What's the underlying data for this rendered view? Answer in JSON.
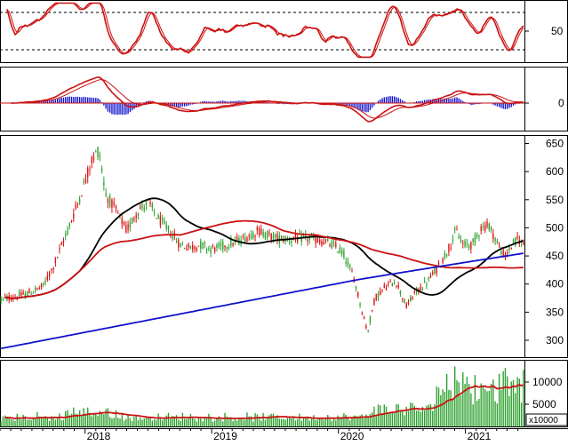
{
  "colors": {
    "background": "#ffffff",
    "frame": "#000000",
    "grid": "#000000",
    "candle_up": "#2ca02c",
    "candle_down": "#dd1111",
    "ma_fast": "#000000",
    "ma_mid": "#cc1111",
    "ma_slow": "#1111cc",
    "rsi_line": "#cc1111",
    "rsi_signal": "#cc1111",
    "macd_line": "#cc1111",
    "macd_signal": "#cc1111",
    "macd_hist_pos": "#1111cc",
    "macd_hist_neg": "#1111cc",
    "volume_bar": "#2ca02c",
    "volume_ma": "#cc1111"
  },
  "chart_data": [
    {
      "type": "line",
      "panel": "rsi",
      "y_ticks": [
        50
      ],
      "ylim": [
        0,
        100
      ],
      "reference_lines": [
        80,
        20
      ],
      "grid": false
    },
    {
      "type": "bar",
      "panel": "macd",
      "y_ticks": [
        0
      ],
      "grid": false
    },
    {
      "type": "candlestick",
      "panel": "price",
      "y_ticks": [
        300,
        350,
        400,
        450,
        500,
        550,
        600,
        650
      ],
      "ylim": [
        270,
        665
      ],
      "grid": false,
      "moving_averages": [
        "ma_fast",
        "ma_mid",
        "ma_slow"
      ]
    },
    {
      "type": "bar",
      "panel": "volume",
      "y_ticks": [
        5000,
        10000
      ],
      "y_tick_labels": [
        "5000",
        "10000"
      ],
      "ylim": [
        0,
        15000
      ],
      "unit_label": "x10000",
      "grid": false
    }
  ],
  "x_axis": {
    "labels": [
      "2018",
      "2019",
      "2020",
      "2021"
    ],
    "label_dates": [
      "2018-01-01",
      "2019-01-01",
      "2020-01-01",
      "2021-01-01"
    ],
    "range": [
      "2017-05-01",
      "2021-06-20"
    ]
  }
}
